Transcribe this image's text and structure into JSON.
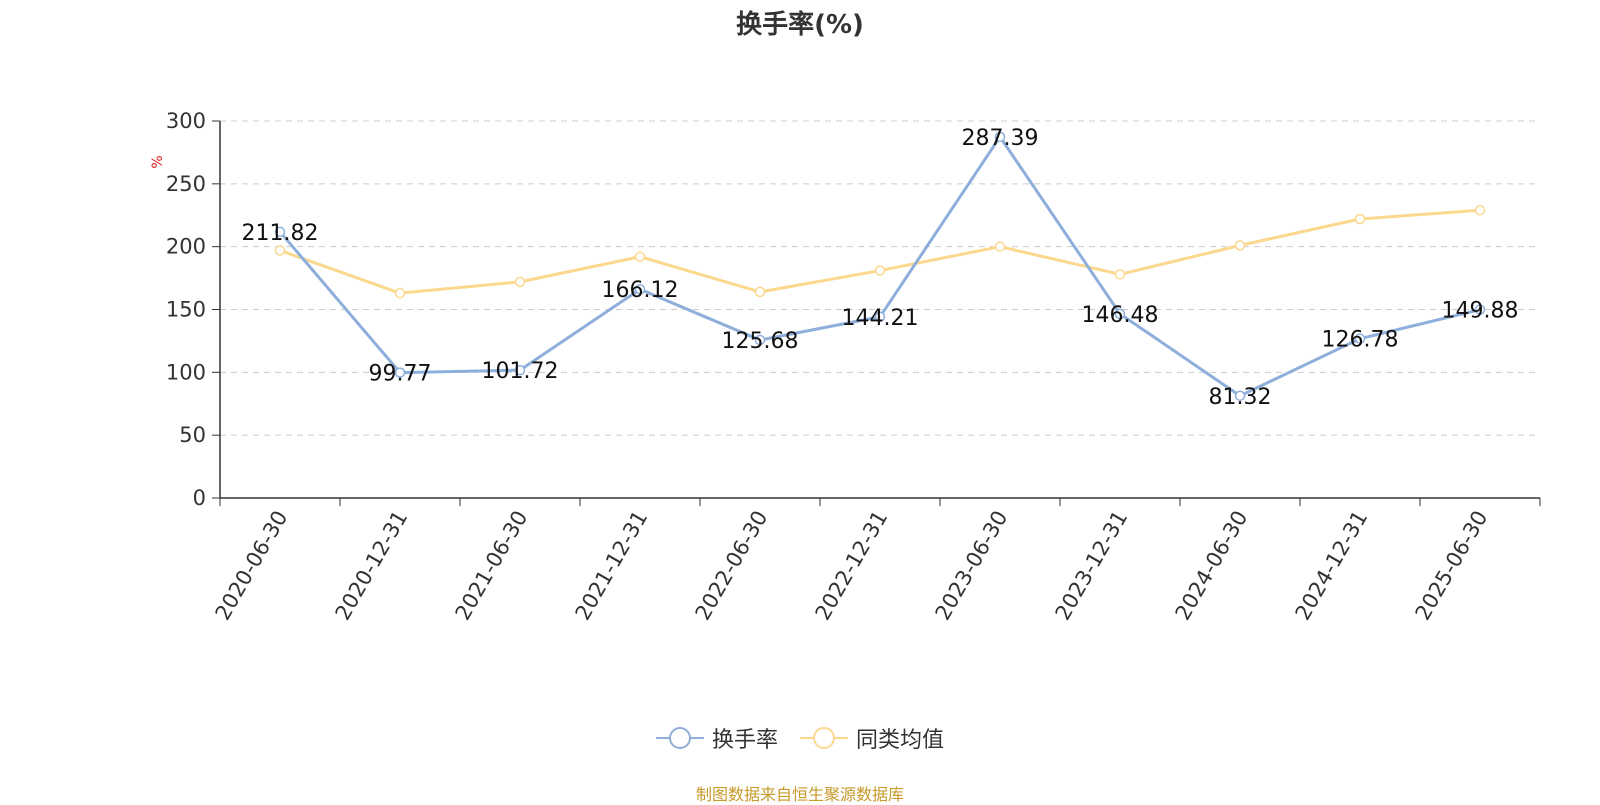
{
  "title": "换手率(%)",
  "source_note": "制图数据来自恒生聚源数据库",
  "colors": {
    "series_1": "#8eaedb",
    "series_2": "#fbd88e",
    "unit_label": "#e02020",
    "source": "#c79a2a"
  },
  "chart_data": {
    "type": "line",
    "title": "换手率(%)",
    "ylabel": "%",
    "ylim": [
      0,
      300
    ],
    "yticks": [
      0,
      50,
      100,
      150,
      200,
      250,
      300
    ],
    "grid": true,
    "legend_position": "bottom-center",
    "categories": [
      "2020-06-30",
      "2020-12-31",
      "2021-06-30",
      "2021-12-31",
      "2022-06-30",
      "2022-12-31",
      "2023-06-30",
      "2023-12-31",
      "2024-06-30",
      "2024-12-31",
      "2025-06-30"
    ],
    "series": [
      {
        "name": "换手率",
        "color": "#8eaedb",
        "labeled": true,
        "values": [
          211.82,
          99.77,
          101.72,
          166.12,
          125.68,
          144.21,
          287.39,
          146.48,
          81.32,
          126.78,
          149.88
        ]
      },
      {
        "name": "同类均值",
        "color": "#fbd88e",
        "labeled": false,
        "values": [
          197,
          163,
          172,
          192,
          164,
          181,
          200,
          178,
          201,
          222,
          229
        ]
      }
    ]
  }
}
